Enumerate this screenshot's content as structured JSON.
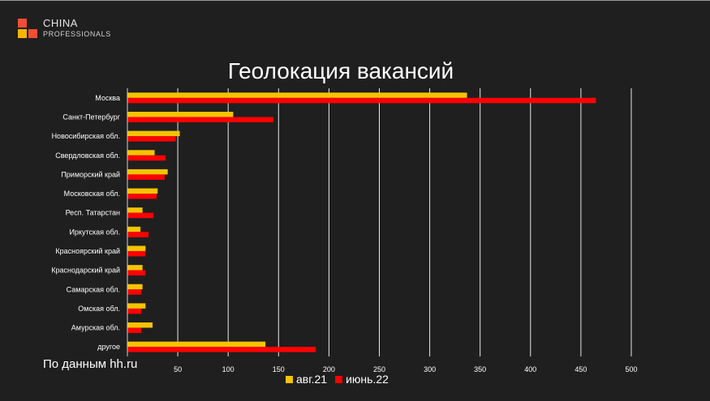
{
  "brand": {
    "line1": "CHINA",
    "line2": "PROFESSIONALS",
    "logo_colors": [
      "#f04e37",
      "#ffffff00",
      "#f7b500",
      "#f04e37"
    ]
  },
  "source_note": "По данным hh.ru",
  "colors": {
    "background": "#1f1f1f",
    "series1": "#f5c400",
    "series2": "#ff0000",
    "grid": "#e8e8e8"
  },
  "chart_data": {
    "type": "bar",
    "orientation": "horizontal",
    "title": "Геолокация вакансий",
    "xlabel": "",
    "ylabel": "",
    "xlim": [
      0,
      500
    ],
    "xticks": [
      0,
      50,
      100,
      150,
      200,
      250,
      300,
      350,
      400,
      450,
      500
    ],
    "grid": true,
    "legend_position": "bottom",
    "categories": [
      "Москва",
      "Санкт-Петербург",
      "Новосибирская обл.",
      "Свердловская обл.",
      "Приморский край",
      "Московская обл.",
      "Респ. Татарстан",
      "Иркутская обл.",
      "Красноярский край",
      "Краснодарский край",
      "Самарская обл.",
      "Омская обл.",
      "Амурская обл.",
      "другое"
    ],
    "series": [
      {
        "name": "авг.21",
        "color": "#f5c400",
        "values": [
          337,
          105,
          52,
          27,
          40,
          30,
          15,
          13,
          18,
          15,
          15,
          18,
          25,
          137
        ]
      },
      {
        "name": "июнь.22",
        "color": "#ff0000",
        "values": [
          465,
          145,
          48,
          38,
          37,
          29,
          26,
          21,
          18,
          18,
          14,
          14,
          14,
          187
        ]
      }
    ]
  }
}
